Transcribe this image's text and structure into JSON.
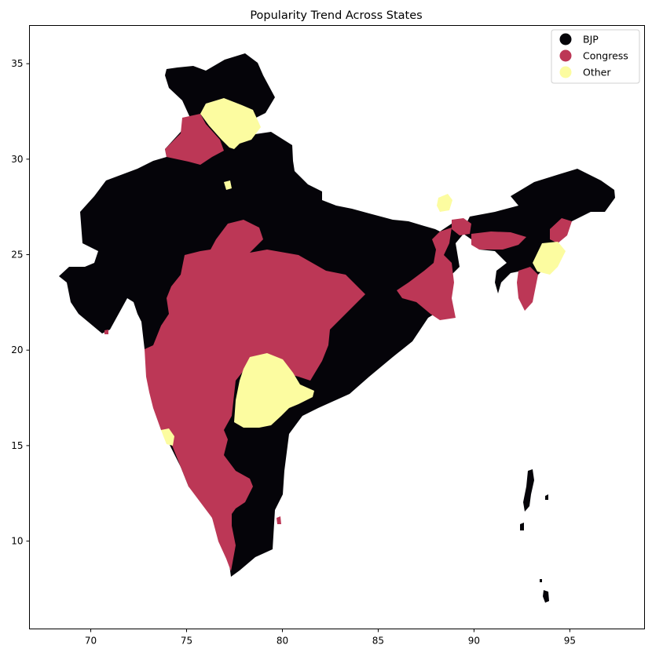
{
  "chart_data": {
    "type": "map",
    "title": "Popularity Trend Across States",
    "xlim": [
      66.8,
      98.9
    ],
    "ylim": [
      5.4,
      37.0
    ],
    "xticks": [
      70,
      75,
      80,
      85,
      90,
      95
    ],
    "yticks": [
      10,
      15,
      20,
      25,
      30,
      35
    ],
    "legend_placement": "top-right",
    "grid": false,
    "categories": [
      {
        "name": "BJP",
        "color": "#050409"
      },
      {
        "name": "Congress",
        "color": "#bc3756"
      },
      {
        "name": "Other",
        "color": "#fcfca0"
      }
    ]
  }
}
